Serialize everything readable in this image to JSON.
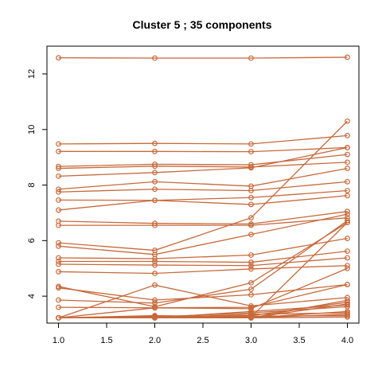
{
  "chart_data": {
    "type": "line",
    "title": "Cluster 5 ; 35 components",
    "xlabel": "",
    "ylabel": "",
    "x": [
      1.0,
      2.0,
      3.0,
      4.0
    ],
    "xlim": [
      0.88,
      4.12
    ],
    "ylim": [
      3.03,
      13.0
    ],
    "xticks": [
      1.0,
      1.5,
      2.0,
      2.5,
      3.0,
      3.5,
      4.0
    ],
    "xtick_labels": [
      "1.0",
      "1.5",
      "2.0",
      "2.5",
      "3.0",
      "3.5",
      "4.0"
    ],
    "yticks": [
      4,
      6,
      8,
      10,
      12
    ],
    "ytick_labels": [
      "4",
      "6",
      "8",
      "10",
      "12"
    ],
    "grid": false,
    "series_color": "#C8693A",
    "series": [
      {
        "values": [
          12.58,
          12.57,
          12.57,
          12.6
        ]
      },
      {
        "values": [
          9.48,
          9.5,
          9.48,
          9.78
        ]
      },
      {
        "values": [
          9.21,
          9.21,
          9.2,
          9.35
        ]
      },
      {
        "values": [
          8.67,
          8.75,
          8.73,
          9.1
        ]
      },
      {
        "values": [
          8.6,
          8.68,
          8.65,
          8.82
        ]
      },
      {
        "values": [
          8.32,
          8.45,
          8.62,
          9.35
        ]
      },
      {
        "values": [
          7.85,
          8.12,
          7.96,
          8.6
        ]
      },
      {
        "values": [
          7.75,
          7.85,
          7.8,
          8.12
        ]
      },
      {
        "values": [
          7.46,
          7.45,
          7.55,
          7.8
        ]
      },
      {
        "values": [
          7.1,
          7.45,
          7.3,
          7.62
        ]
      },
      {
        "values": [
          6.7,
          6.62,
          6.6,
          7.05
        ]
      },
      {
        "values": [
          6.55,
          6.55,
          6.55,
          6.82
        ]
      },
      {
        "values": [
          5.92,
          5.65,
          6.82,
          10.3
        ]
      },
      {
        "values": [
          5.8,
          5.5,
          6.22,
          6.95
        ]
      },
      {
        "values": [
          5.38,
          5.35,
          5.48,
          6.08
        ]
      },
      {
        "values": [
          5.25,
          5.25,
          5.22,
          5.62
        ]
      },
      {
        "values": [
          5.15,
          5.12,
          5.1,
          5.38
        ]
      },
      {
        "values": [
          4.88,
          4.82,
          4.98,
          5.1
        ]
      },
      {
        "values": [
          4.35,
          3.62,
          4.48,
          6.65
        ]
      },
      {
        "values": [
          4.3,
          3.86,
          4.05,
          4.42
        ]
      },
      {
        "values": [
          3.86,
          3.75,
          4.25,
          6.72
        ]
      },
      {
        "values": [
          3.6,
          3.58,
          3.6,
          4.42
        ]
      },
      {
        "values": [
          3.22,
          4.4,
          3.65,
          3.95
        ]
      },
      {
        "values": [
          3.22,
          3.58,
          3.55,
          5.0
        ]
      },
      {
        "values": [
          3.22,
          3.3,
          3.25,
          6.65
        ]
      },
      {
        "values": [
          3.22,
          3.28,
          3.22,
          3.85
        ]
      },
      {
        "values": [
          3.22,
          3.25,
          3.3,
          3.78
        ]
      },
      {
        "values": [
          3.22,
          3.22,
          3.22,
          3.72
        ]
      },
      {
        "values": [
          3.22,
          3.22,
          3.45,
          3.68
        ]
      },
      {
        "values": [
          3.22,
          3.22,
          3.22,
          3.45
        ]
      },
      {
        "values": [
          3.22,
          3.22,
          3.35,
          3.4
        ]
      },
      {
        "values": [
          3.22,
          3.22,
          3.22,
          3.35
        ]
      },
      {
        "values": [
          3.22,
          3.22,
          3.28,
          3.3
        ]
      },
      {
        "values": [
          3.22,
          3.25,
          3.4,
          3.62
        ]
      },
      {
        "values": [
          3.22,
          3.22,
          3.22,
          3.25
        ]
      }
    ]
  }
}
